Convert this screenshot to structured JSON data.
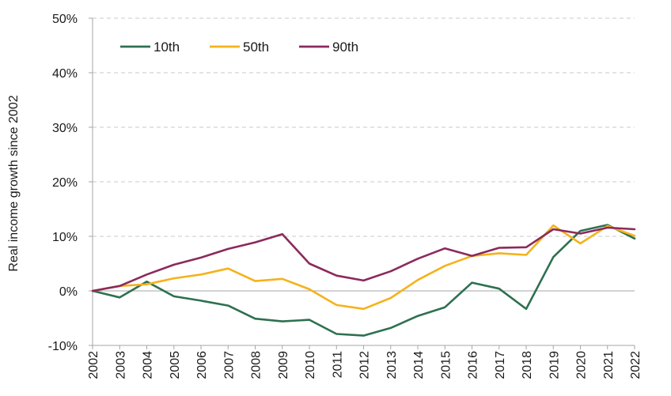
{
  "chart_data": {
    "type": "line",
    "title": "",
    "xlabel": "",
    "ylabel": "Real income growth since 2002",
    "ylim": [
      -10,
      50
    ],
    "yticks": [
      -10,
      0,
      10,
      20,
      30,
      40,
      50
    ],
    "ytick_labels": [
      "-10%",
      "0%",
      "10%",
      "20%",
      "30%",
      "40%",
      "50%"
    ],
    "grid": "horizontal dashed",
    "legend_position": "top-left",
    "x": [
      "2002",
      "2003",
      "2004",
      "2005",
      "2006",
      "2007",
      "2008",
      "2009",
      "2010",
      "2011",
      "2012",
      "2013",
      "2014",
      "2015",
      "2016",
      "2017",
      "2018",
      "2019",
      "2020",
      "2021",
      "2022"
    ],
    "series": [
      {
        "name": "10th",
        "color": "#2E7050",
        "values": [
          0,
          -1.2,
          1.7,
          -1.0,
          -1.8,
          -2.7,
          -5.1,
          -5.6,
          -5.3,
          -7.9,
          -8.2,
          -6.8,
          -4.6,
          -3.0,
          1.5,
          0.4,
          -3.3,
          6.2,
          11.0,
          12.1,
          9.6
        ]
      },
      {
        "name": "50th",
        "color": "#F5B21B",
        "values": [
          0,
          0.9,
          1.2,
          2.3,
          3.0,
          4.1,
          1.8,
          2.2,
          0.3,
          -2.6,
          -3.3,
          -1.3,
          2.0,
          4.6,
          6.4,
          6.9,
          6.6,
          12.0,
          8.7,
          11.9,
          10.1
        ]
      },
      {
        "name": "90th",
        "color": "#8B2A5B",
        "values": [
          0,
          0.9,
          3.0,
          4.8,
          6.1,
          7.7,
          8.9,
          10.4,
          5.0,
          2.8,
          1.9,
          3.6,
          5.9,
          7.8,
          6.4,
          7.9,
          8.0,
          11.3,
          10.5,
          11.6,
          11.3
        ]
      }
    ]
  }
}
